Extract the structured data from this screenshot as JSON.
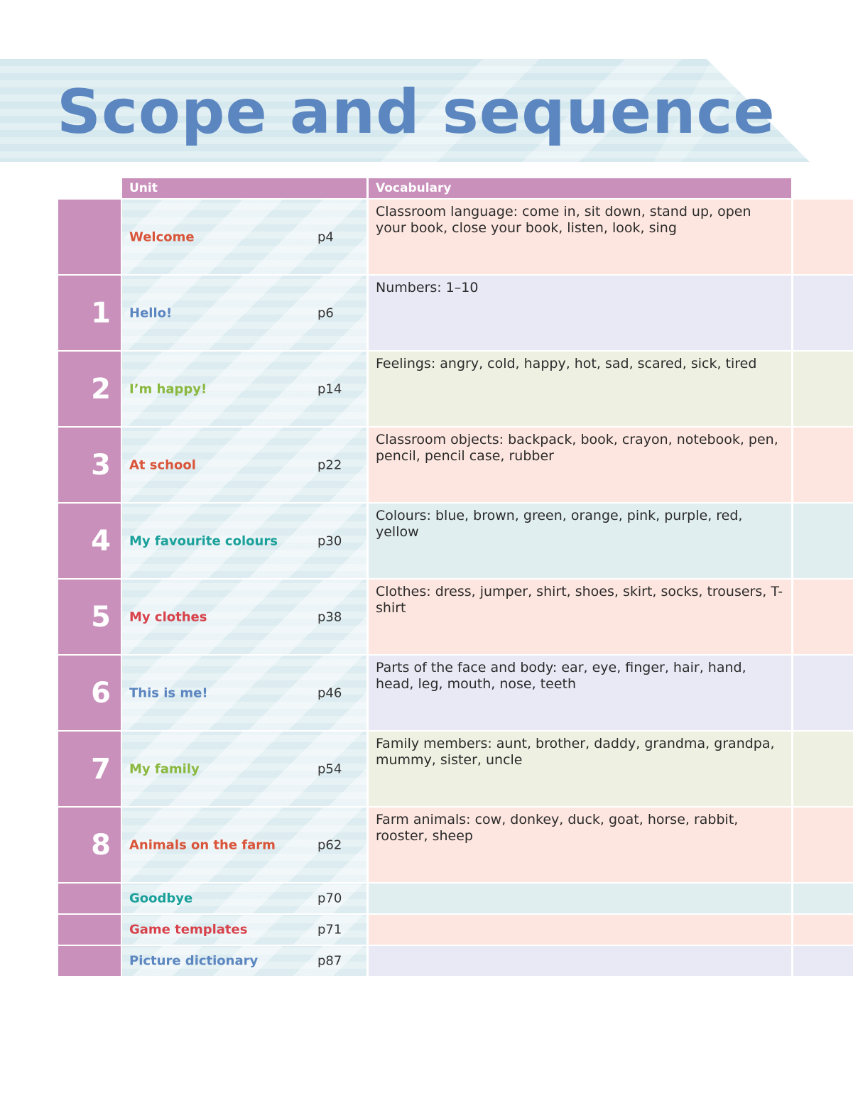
{
  "header": {
    "title": "Scope and sequence"
  },
  "table": {
    "columns": [
      "Unit",
      "Vocabulary"
    ],
    "rows": [
      {
        "unit": "Welcome",
        "page": "p4",
        "color": "#d9553a",
        "tint": "#fde6df",
        "vocabulary": "Classroom language: come in, sit down, stand up, open your book, close your book, listen, look, sing"
      },
      {
        "number": "1",
        "unit": "Hello!",
        "page": "p6",
        "color": "#5b86c0",
        "tint": "#e8e9f5",
        "vocabulary": "Numbers: 1–10"
      },
      {
        "number": "2",
        "unit": "I’m happy!",
        "page": "p14",
        "color": "#8ab83e",
        "tint": "#eef1e2",
        "vocabulary": "Feelings: angry, cold, happy, hot, sad, scared, sick, tired"
      },
      {
        "number": "3",
        "unit": "At school",
        "page": "p22",
        "color": "#d9553a",
        "tint": "#fde6df",
        "vocabulary": "Classroom objects: backpack, book, crayon, notebook, pen, pencil, pencil case, rubber"
      },
      {
        "number": "4",
        "unit": "My favourite colours",
        "page": "p30",
        "color": "#1aa09a",
        "tint": "#e0eef0",
        "vocabulary": "Colours: blue, brown, green, orange, pink, purple, red, yellow"
      },
      {
        "number": "5",
        "unit": "My clothes",
        "page": "p38",
        "color": "#d8414a",
        "tint": "#fde6df",
        "vocabulary": "Clothes: dress, jumper, shirt, shoes, skirt, socks, trousers, T-shirt"
      },
      {
        "number": "6",
        "unit": "This is me!",
        "page": "p46",
        "color": "#5b86c0",
        "tint": "#e8e9f5",
        "vocabulary": "Parts of the face and body: ear, eye, finger, hair, hand, head, leg, mouth, nose, teeth"
      },
      {
        "number": "7",
        "unit": "My family",
        "page": "p54",
        "color": "#8ab83e",
        "tint": "#eef1e2",
        "vocabulary": "Family members: aunt, brother, daddy, grandma, grandpa, mummy, sister, uncle"
      },
      {
        "number": "8",
        "unit": "Animals on the farm",
        "page": "p62",
        "color": "#d9553a",
        "tint": "#fde6df",
        "vocabulary": "Farm animals: cow, donkey, duck, goat, horse, rabbit, rooster, sheep"
      },
      {
        "unit": "Goodbye",
        "page": "p70",
        "color": "#1aa09a",
        "tint": "#e0eef0"
      },
      {
        "unit": "Game templates",
        "page": "p71",
        "color": "#d8414a",
        "tint": "#fde6df"
      },
      {
        "unit": "Picture dictionary",
        "page": "p87",
        "color": "#5b86c0",
        "tint": "#e8e9f5"
      }
    ]
  }
}
